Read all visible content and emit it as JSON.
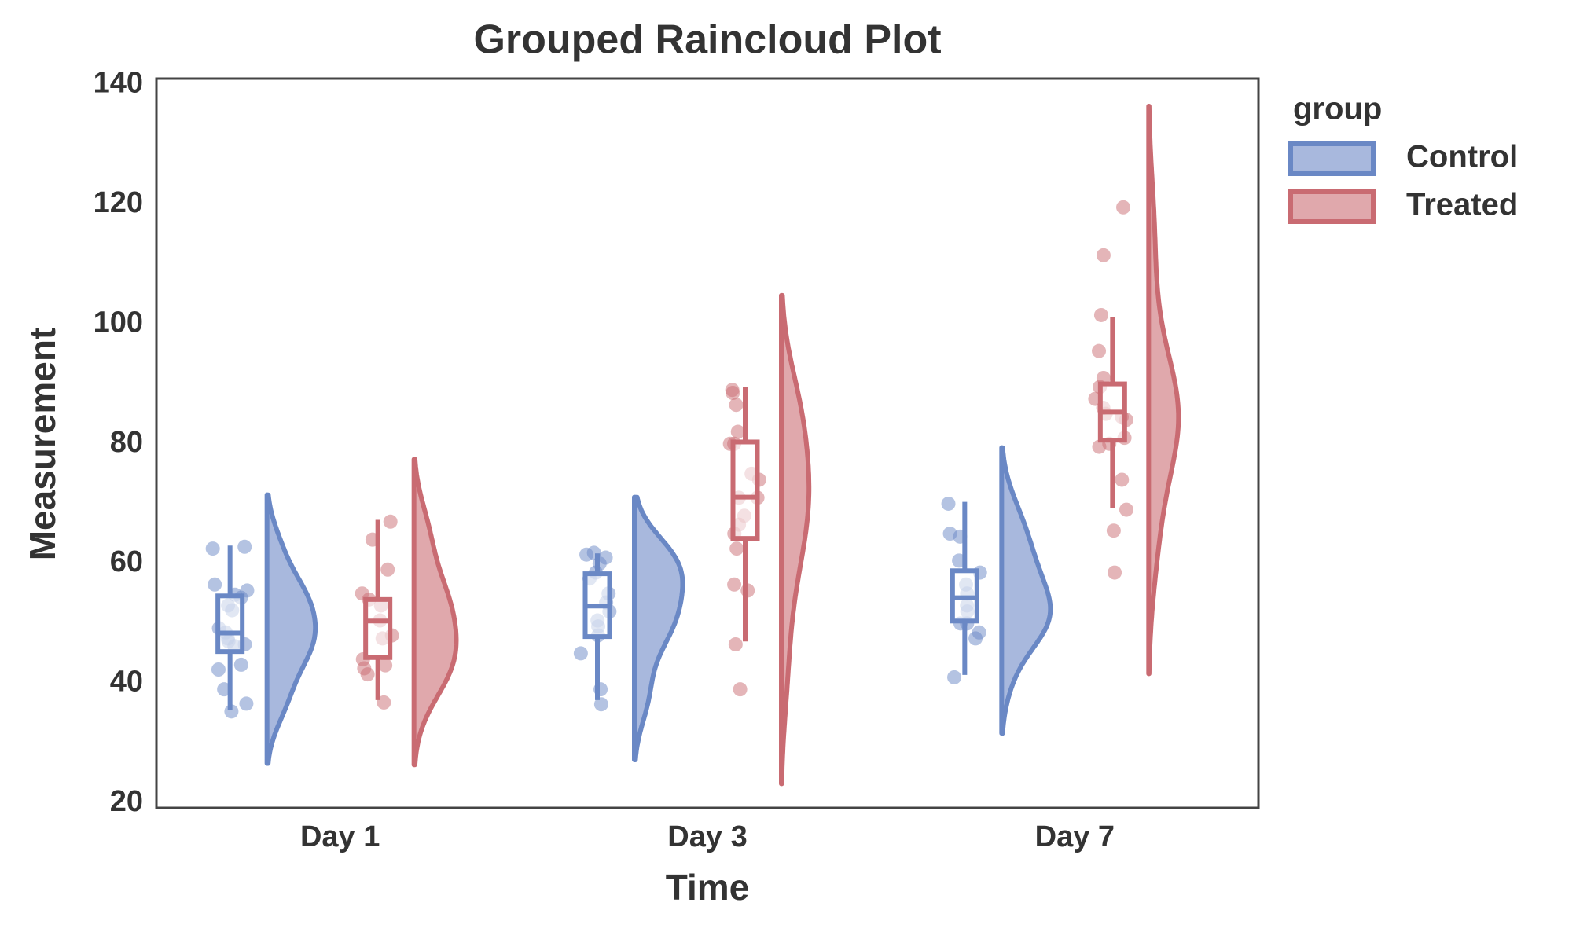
{
  "chart_data": {
    "type": "raincloud",
    "title": "Grouped Raincloud Plot",
    "x_label": "Time",
    "y_label": "Measurement",
    "categories": [
      "Day 1",
      "Day 3",
      "Day 7"
    ],
    "ylim": [
      19.2,
      141
    ],
    "yticks": [
      20,
      40,
      60,
      80,
      100,
      120,
      140
    ],
    "grid": false,
    "legend": {
      "title": "group",
      "position": "outside right"
    },
    "series": [
      {
        "name": "Control",
        "color": "#6a88c5",
        "fill": "#a8b8dd",
        "values": [
          [
            62.5,
            62.8,
            56.5,
            52.2,
            48.5,
            47,
            46.2,
            42.3,
            39,
            35.3,
            36.6,
            43.1,
            49.2,
            55.5,
            54.3,
            53,
            46.5,
            47.5,
            54.8
          ],
          [
            61.5,
            61,
            60,
            58.5,
            57.5,
            55,
            53.5,
            50.5,
            49.5,
            48,
            45,
            39,
            36.5,
            61.8,
            52
          ],
          [
            70,
            65,
            64.5,
            60.5,
            58.5,
            56.5,
            55,
            53,
            52,
            50,
            50,
            48.5,
            47.5,
            41
          ]
        ],
        "box": [
          {
            "whislo": 35.5,
            "q1": 45.3,
            "med": 48.4,
            "q3": 54.6,
            "whishi": 63
          },
          {
            "whislo": 37.2,
            "q1": 47.8,
            "med": 52.9,
            "q3": 58.3,
            "whishi": 61.7
          },
          {
            "whislo": 41.4,
            "q1": 50.4,
            "med": 54.3,
            "q3": 58.8,
            "whishi": 70.3
          }
        ]
      },
      {
        "name": "Treated",
        "color": "#c96b72",
        "fill": "#e0a8ac",
        "values": [
          [
            67,
            64,
            59,
            55,
            53,
            54,
            50.5,
            48,
            47.5,
            44,
            42.5,
            43,
            41.5,
            36.8
          ],
          [
            89,
            88.5,
            86.5,
            82,
            80,
            80,
            75,
            74,
            71,
            71,
            68,
            66.5,
            65,
            62.5,
            56.5,
            55.5,
            46.5,
            39
          ],
          [
            119.5,
            111.5,
            101.5,
            95.5,
            91,
            89.5,
            87.5,
            86,
            85,
            84.5,
            84,
            81,
            80,
            79.5,
            74,
            69,
            65.5,
            58.5
          ]
        ],
        "box": [
          {
            "whislo": 37.2,
            "q1": 44.3,
            "med": 50.4,
            "q3": 54,
            "whishi": 67.3
          },
          {
            "whislo": 47,
            "q1": 64.2,
            "med": 71.1,
            "q3": 80.3,
            "whishi": 89.5
          },
          {
            "whislo": 69.3,
            "q1": 80.6,
            "med": 85.3,
            "q3": 90,
            "whishi": 101.2
          }
        ]
      }
    ]
  }
}
